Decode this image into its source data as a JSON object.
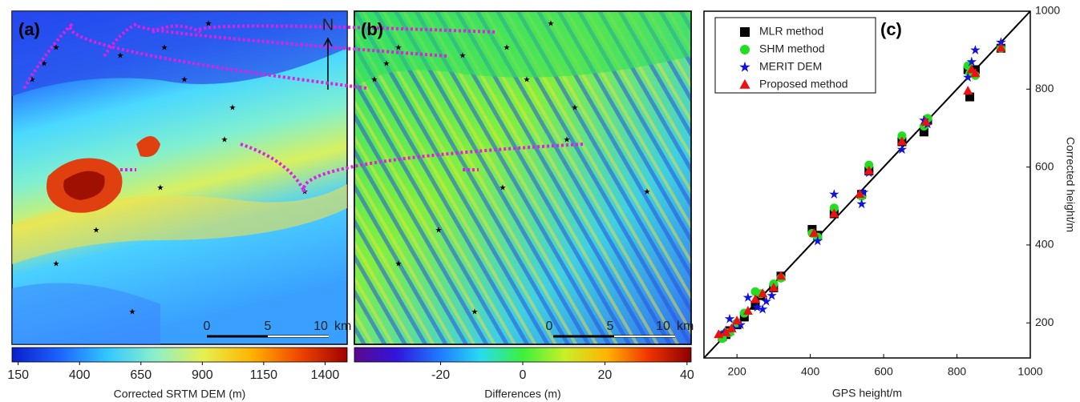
{
  "chart_data": [
    {
      "type": "map",
      "panel_label": "(a)",
      "north": "N",
      "scale_bar": [
        "0",
        "5",
        "10",
        "km"
      ],
      "colorbar_label": "Corrected SRTM DEM (m)",
      "clim": [
        125,
        1490
      ],
      "cticks": [
        150,
        400,
        650,
        900,
        1150,
        1400
      ],
      "colormap": [
        "#0a1ecc",
        "#1e64ff",
        "#32c8ff",
        "#8cf0c8",
        "#e6f050",
        "#ffb400",
        "#f04600",
        "#a00000"
      ]
    },
    {
      "type": "map",
      "panel_label": "(b)",
      "scale_bar": [
        "0",
        "5",
        "10",
        "km"
      ],
      "colorbar_label": "Differences (m)",
      "clim": [
        -41,
        41
      ],
      "cticks": [
        -20,
        0,
        20,
        40
      ],
      "colormap": [
        "#5a0a8c",
        "#3214dc",
        "#1e78ff",
        "#28dcf0",
        "#3cf03c",
        "#c8f028",
        "#ffb400",
        "#f03200",
        "#8c0000"
      ]
    },
    {
      "type": "scatter",
      "panel_label": "(c)",
      "x_label": "GPS height/m",
      "y_label": "Corrected height/m",
      "xlim": [
        110,
        1000
      ],
      "ylim": [
        110,
        1000
      ],
      "xticks": [
        200,
        400,
        600,
        800,
        1000
      ],
      "yticks": [
        200,
        400,
        600,
        800,
        1000
      ],
      "identity_line": true,
      "legend": "upper left",
      "series": [
        {
          "name": "MLR method",
          "color": "#000000",
          "marker": "square",
          "x": [
            160,
            170,
            180,
            200,
            220,
            250,
            265,
            300,
            320,
            405,
            420,
            465,
            540,
            560,
            650,
            710,
            720,
            830,
            835,
            850,
            920
          ],
          "values": [
            165,
            170,
            180,
            195,
            215,
            245,
            270,
            290,
            320,
            440,
            425,
            480,
            530,
            590,
            665,
            690,
            720,
            850,
            780,
            850,
            905
          ]
        },
        {
          "name": "SHM method",
          "color": "#22dd22",
          "marker": "circle",
          "x": [
            160,
            170,
            180,
            200,
            220,
            250,
            265,
            300,
            320,
            405,
            420,
            465,
            540,
            560,
            650,
            710,
            720,
            830,
            835,
            850,
            920
          ],
          "values": [
            160,
            175,
            175,
            200,
            225,
            280,
            275,
            300,
            315,
            430,
            420,
            495,
            525,
            605,
            680,
            705,
            725,
            860,
            840,
            835,
            905
          ]
        },
        {
          "name": "MERIT DEM",
          "color": "#1010e0",
          "marker": "star",
          "x": [
            165,
            180,
            190,
            210,
            230,
            255,
            270,
            280,
            295,
            420,
            465,
            540,
            545,
            560,
            650,
            710,
            720,
            830,
            840,
            850,
            920
          ],
          "values": [
            175,
            210,
            185,
            195,
            265,
            240,
            235,
            255,
            270,
            410,
            530,
            505,
            535,
            585,
            645,
            720,
            710,
            830,
            870,
            900,
            920
          ]
        },
        {
          "name": "Proposed method",
          "color": "#ee1111",
          "marker": "triangle",
          "x": [
            150,
            170,
            185,
            200,
            230,
            250,
            270,
            300,
            320,
            410,
            465,
            535,
            560,
            650,
            715,
            830,
            840,
            850,
            920
          ],
          "values": [
            170,
            175,
            185,
            205,
            230,
            260,
            275,
            290,
            320,
            430,
            480,
            530,
            590,
            665,
            715,
            795,
            850,
            840,
            905
          ]
        }
      ]
    }
  ]
}
